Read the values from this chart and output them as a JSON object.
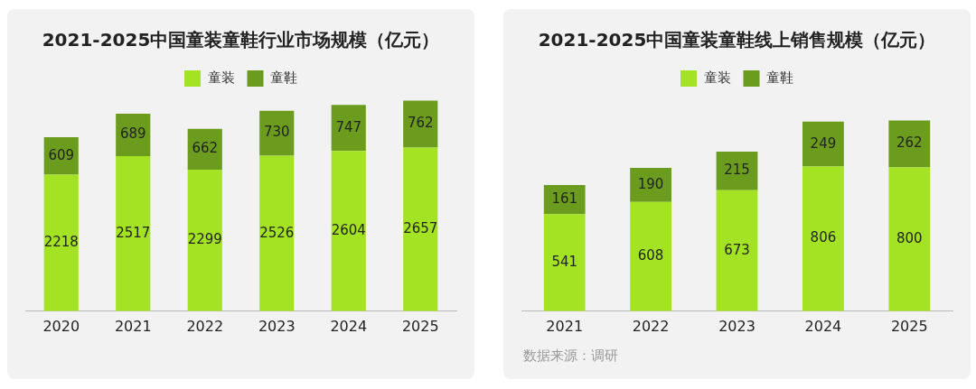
{
  "chart_data": [
    {
      "type": "bar",
      "title": "2021-2025中国童装童鞋行业市场规模（亿元）",
      "categories": [
        "2020",
        "2021",
        "2022",
        "2023",
        "2024",
        "2025"
      ],
      "stacked": true,
      "data_labels": true,
      "legend": "top",
      "grid": false,
      "tick_labels": "x",
      "series": [
        {
          "name": "童装",
          "color": "#a4e323",
          "values": [
            2218,
            2517,
            2299,
            2526,
            2604,
            2657
          ]
        },
        {
          "name": "童鞋",
          "color": "#6b9c1e",
          "values": [
            609,
            689,
            662,
            730,
            747,
            762
          ]
        }
      ]
    },
    {
      "type": "bar",
      "title": "2021-2025中国童装童鞋线上销售规模（亿元）",
      "categories": [
        "2021",
        "2022",
        "2023",
        "2024",
        "2025"
      ],
      "stacked": true,
      "data_labels": true,
      "legend": "top",
      "grid": false,
      "tick_labels": "x",
      "annotations": [
        "数据来源：调研"
      ],
      "series": [
        {
          "name": "童装",
          "color": "#a4e323",
          "values": [
            541,
            608,
            673,
            806,
            800
          ]
        },
        {
          "name": "童鞋",
          "color": "#6b9c1e",
          "values": [
            161,
            190,
            215,
            249,
            262
          ]
        }
      ]
    }
  ]
}
